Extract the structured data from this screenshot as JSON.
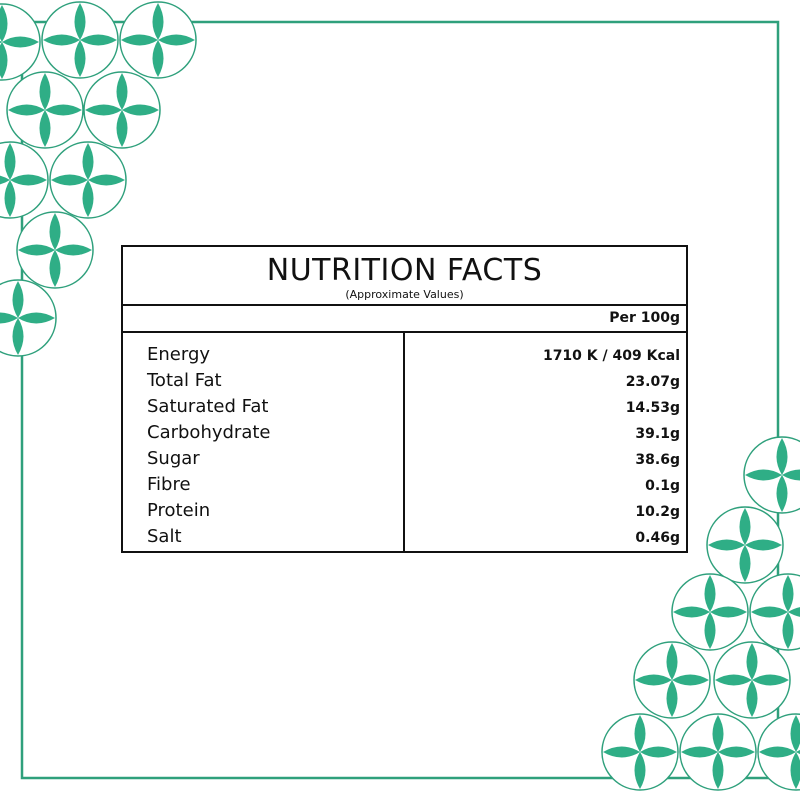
{
  "colors": {
    "accent": "#2fae86",
    "frame": "#2fa07c"
  },
  "label": {
    "title": "NUTRITION FACTS",
    "subtitle": "(Approximate Values)",
    "per": "Per 100g",
    "rows": [
      {
        "name": "Energy",
        "value": "1710 K / 409 Kcal"
      },
      {
        "name": "Total Fat",
        "value": "23.07g"
      },
      {
        "name": "Saturated Fat",
        "value": "14.53g"
      },
      {
        "name": "Carbohydrate",
        "value": "39.1g"
      },
      {
        "name": "Sugar",
        "value": "38.6g"
      },
      {
        "name": "Fibre",
        "value": "0.1g"
      },
      {
        "name": "Protein",
        "value": "10.2g"
      },
      {
        "name": "Salt",
        "value": "0.46g"
      }
    ]
  }
}
